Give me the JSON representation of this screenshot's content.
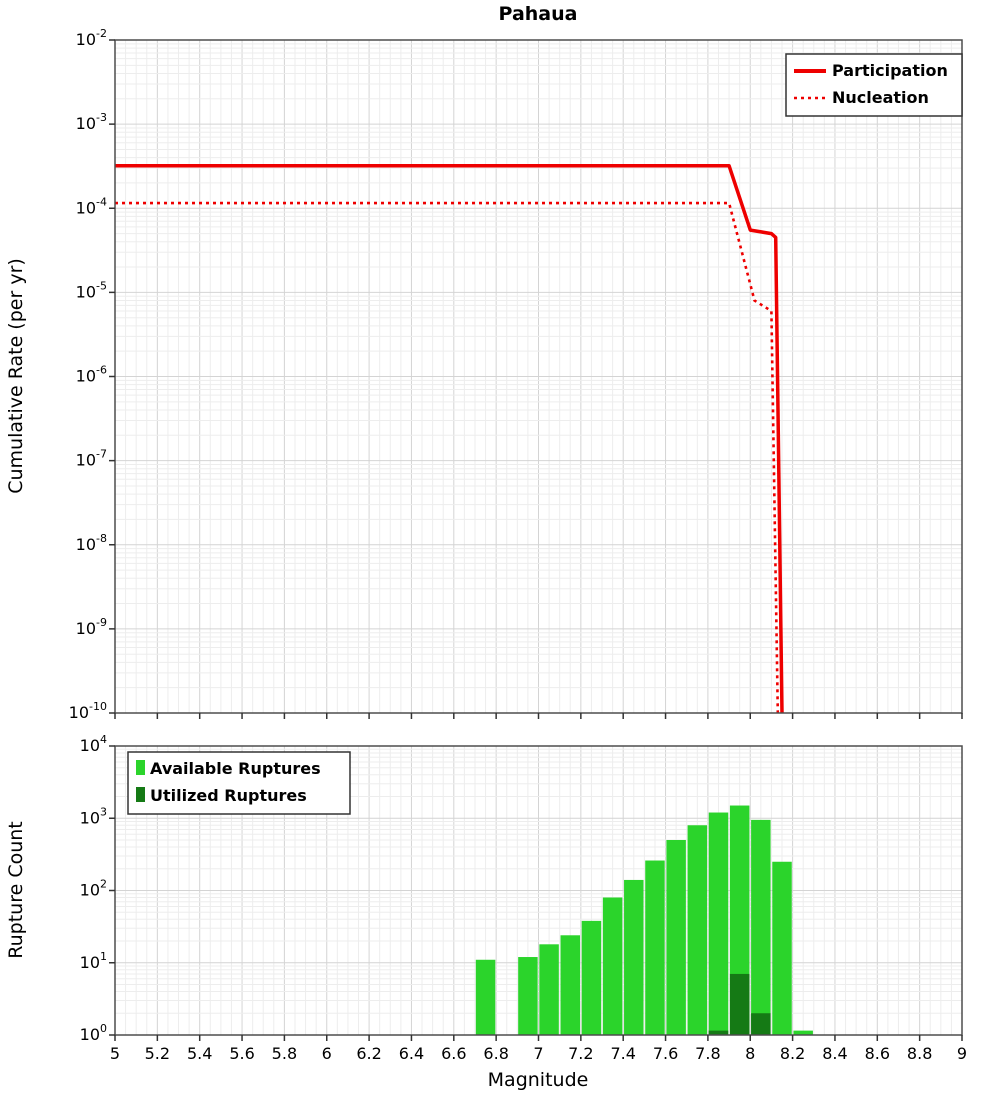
{
  "title": "Pahaua",
  "chart_data": [
    {
      "type": "line",
      "title": "Pahaua",
      "ylabel": "Cumulative Rate (per yr)",
      "xlabel": "",
      "xlim": [
        5,
        9
      ],
      "x_tick_step": 0.2,
      "ylim": [
        1e-10,
        0.01
      ],
      "y_scale": "log",
      "grid": true,
      "legend_position": "top-right",
      "series": [
        {
          "name": "Participation",
          "style": "solid",
          "color": "#ee0000",
          "points": [
            [
              5,
              0.00032
            ],
            [
              7.9,
              0.00032
            ],
            [
              8.0,
              5.5e-05
            ],
            [
              8.1,
              5e-05
            ],
            [
              8.12,
              4.5e-05
            ],
            [
              8.15,
              1e-10
            ]
          ]
        },
        {
          "name": "Nucleation",
          "style": "dotted",
          "color": "#ee0000",
          "points": [
            [
              5,
              0.000115
            ],
            [
              7.9,
              0.000115
            ],
            [
              8.02,
              8e-06
            ],
            [
              8.1,
              6e-06
            ],
            [
              8.13,
              1e-10
            ]
          ]
        }
      ]
    },
    {
      "type": "bar",
      "title": "",
      "ylabel": "Rupture Count",
      "xlabel": "Magnitude",
      "xlim": [
        5,
        9
      ],
      "x_tick_step": 0.2,
      "ylim": [
        1,
        10000
      ],
      "y_scale": "log",
      "grid": true,
      "bin_width": 0.1,
      "legend_position": "top-left",
      "series": [
        {
          "name": "Available Ruptures",
          "color": "#2bd42b",
          "bars": [
            [
              6.75,
              11
            ],
            [
              6.95,
              12
            ],
            [
              7.05,
              18
            ],
            [
              7.15,
              24
            ],
            [
              7.25,
              38
            ],
            [
              7.35,
              80
            ],
            [
              7.45,
              140
            ],
            [
              7.55,
              260
            ],
            [
              7.65,
              500
            ],
            [
              7.75,
              800
            ],
            [
              7.85,
              1200
            ],
            [
              7.95,
              1500
            ],
            [
              8.05,
              950
            ],
            [
              8.15,
              250
            ],
            [
              8.25,
              1.15
            ]
          ]
        },
        {
          "name": "Utilized Ruptures",
          "color": "#157a15",
          "bars": [
            [
              7.85,
              1.15
            ],
            [
              7.95,
              7
            ],
            [
              8.05,
              2
            ]
          ]
        }
      ]
    }
  ]
}
